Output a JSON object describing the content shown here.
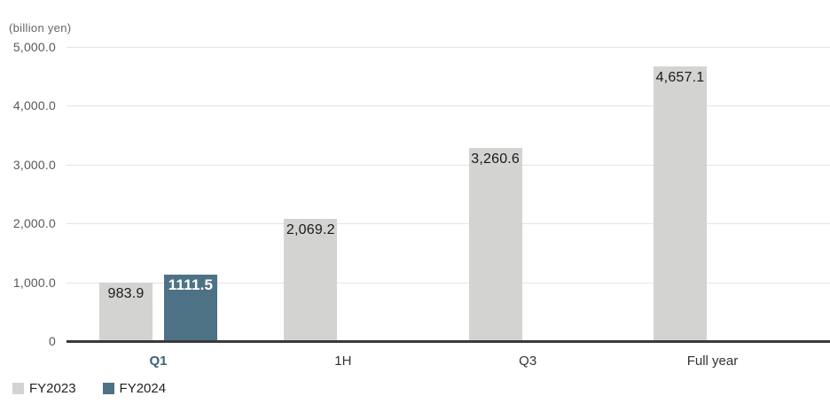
{
  "colors": {
    "fy2023_bar": "#d3d3d2",
    "fy2024_bar": "#4e7285",
    "highlight_label": "#3f6175",
    "axis_label": "#333333",
    "tick_label": "#595959",
    "gridline": "#e4e4e4",
    "baseline": "#3a3a3a",
    "bar_value_text": "#1a1a1a",
    "bar_value_text_inverse": "#ffffff"
  },
  "legend": [
    {
      "label": "FY2023",
      "color": "#d3d3d2"
    },
    {
      "label": "FY2024",
      "color": "#4e7285"
    }
  ],
  "chart_data": {
    "type": "bar",
    "title": "",
    "unit": "(billion yen)",
    "categories": [
      "Q1",
      "1H",
      "Q3",
      "Full year"
    ],
    "series": [
      {
        "name": "FY2023",
        "color": "#d3d3d2",
        "values": [
          983.9,
          2069.2,
          3260.6,
          4657.1
        ],
        "labels": [
          "983.9",
          "2,069.2",
          "3,260.6",
          "4,657.1"
        ],
        "label_style": "dark"
      },
      {
        "name": "FY2024",
        "color": "#4e7285",
        "values": [
          1111.5,
          null,
          null,
          null
        ],
        "labels": [
          "1111.5",
          null,
          null,
          null
        ],
        "label_style": "inverse"
      }
    ],
    "ylim": [
      0,
      5000
    ],
    "ytick_interval": 1000,
    "ytick_labels": [
      "0",
      "1,000.0",
      "2,000.0",
      "3,000.0",
      "4,000.0",
      "5,000.0"
    ],
    "grid": true,
    "legend_position": "bottom-left",
    "highlighted_category": "Q1"
  }
}
